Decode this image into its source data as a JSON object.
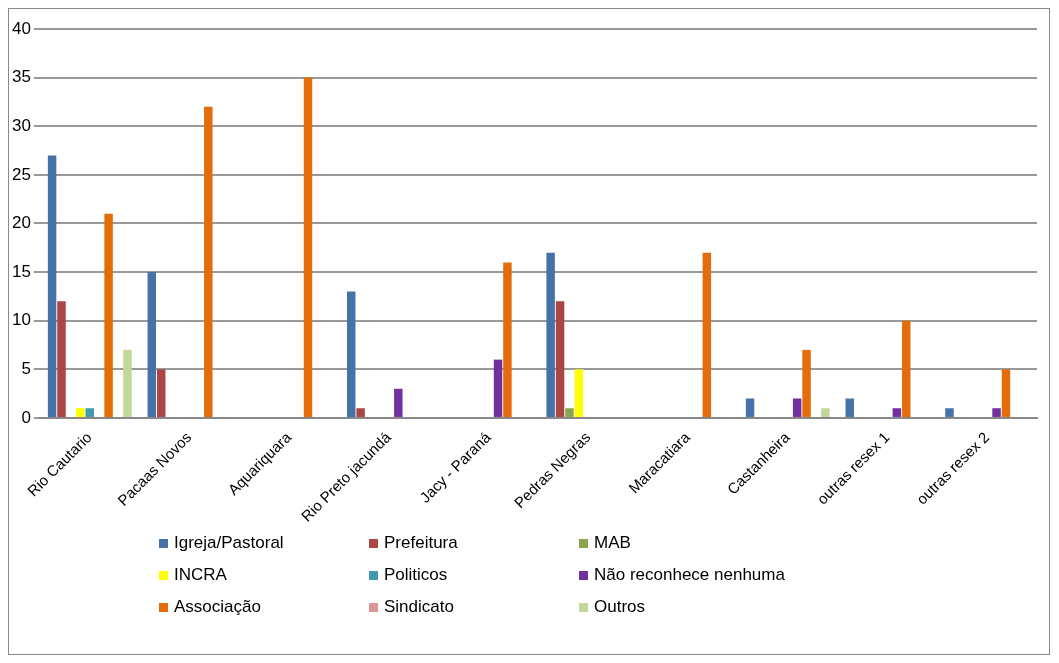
{
  "chart_data": {
    "type": "bar",
    "categories": [
      "Rio Cautario",
      "Pacaas Novos",
      "Aquariquara",
      "Rio Preto jacundá",
      "Jacy - Paraná",
      "Pedras Negras",
      "Maracatiara",
      "Castanheira",
      "outras resex 1",
      "outras resex 2"
    ],
    "series": [
      {
        "name": "Igreja/Pastoral",
        "color": "#4572a7",
        "values": [
          27,
          15,
          0,
          13,
          0,
          17,
          0,
          2,
          2,
          1
        ]
      },
      {
        "name": "Prefeitura",
        "color": "#aa4643",
        "values": [
          12,
          5,
          0,
          1,
          0,
          12,
          0,
          0,
          0,
          0
        ]
      },
      {
        "name": "MAB",
        "color": "#89a54e",
        "values": [
          0,
          0,
          0,
          0,
          0,
          1,
          0,
          0,
          0,
          0
        ]
      },
      {
        "name": "INCRA",
        "color": "#ffff00",
        "values": [
          1,
          0,
          0,
          0,
          0,
          5,
          0,
          0,
          0,
          0
        ]
      },
      {
        "name": "Politicos",
        "color": "#4198af",
        "values": [
          1,
          0,
          0,
          0,
          0,
          0,
          0,
          0,
          0,
          0
        ]
      },
      {
        "name": "Não reconhece nenhuma",
        "color": "#7030a0",
        "values": [
          0,
          0,
          0,
          3,
          6,
          0,
          0,
          2,
          1,
          1
        ]
      },
      {
        "name": "Associação",
        "color": "#e46c0a",
        "values": [
          21,
          32,
          35,
          0,
          16,
          0,
          17,
          7,
          10,
          5
        ]
      },
      {
        "name": "Sindicato",
        "color": "#d99694",
        "values": [
          0,
          0,
          0,
          0,
          0,
          0,
          0,
          0,
          0,
          0
        ]
      },
      {
        "name": "Outros",
        "color": "#c3d69b",
        "values": [
          7,
          0,
          0,
          0,
          0,
          0,
          0,
          1,
          0,
          0
        ]
      }
    ],
    "ylim": [
      0,
      40
    ],
    "yticks": [
      0,
      5,
      10,
      15,
      20,
      25,
      30,
      35,
      40
    ],
    "grid": "y",
    "legend": "bottom"
  }
}
